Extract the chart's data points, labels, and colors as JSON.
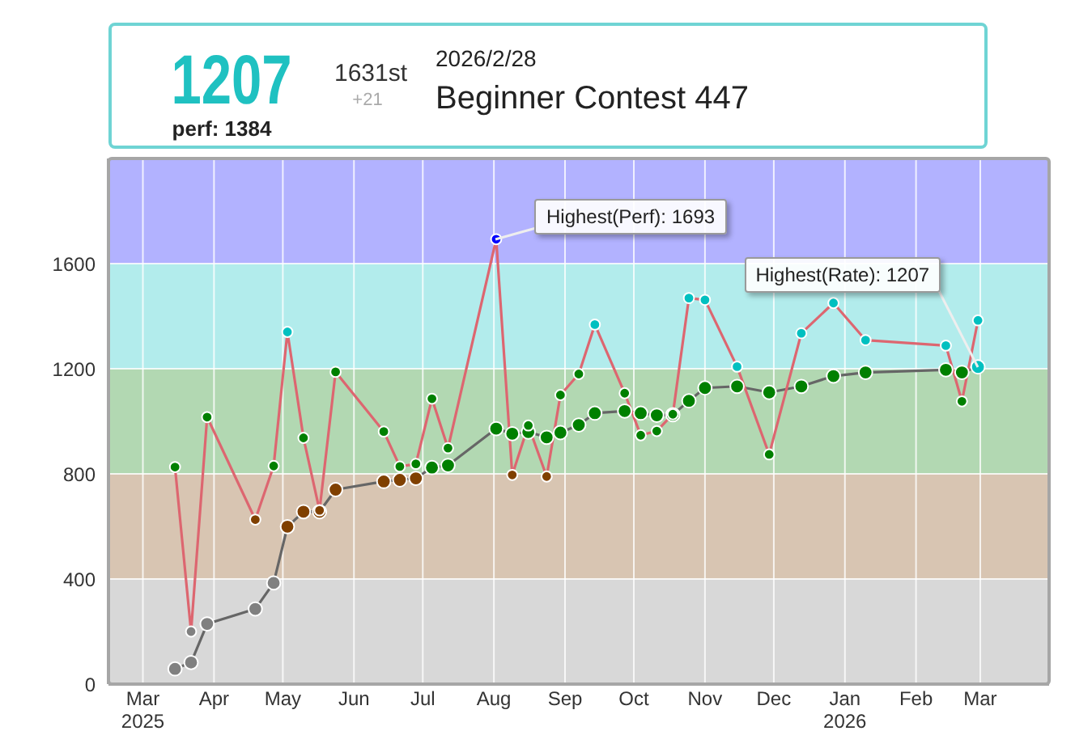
{
  "chart_data": [
    {
      "type": "other",
      "title": "Beginner Contest 447",
      "subtitle": "2026/2/28",
      "annotations": [
        "1207",
        "perf: 1384",
        "1631st",
        "+21"
      ]
    },
    {
      "type": "line",
      "x": [
        "2025-03-15",
        "2025-03-22",
        "2025-03-29",
        "2025-04-19",
        "2025-04-27",
        "2025-05-03",
        "2025-05-10",
        "2025-05-17",
        "2025-05-24",
        "2025-06-14",
        "2025-06-21",
        "2025-06-28",
        "2025-07-05",
        "2025-07-12",
        "2025-08-02",
        "2025-08-09",
        "2025-08-16",
        "2025-08-24",
        "2025-08-30",
        "2025-09-07",
        "2025-09-14",
        "2025-09-27",
        "2025-10-04",
        "2025-10-11",
        "2025-10-18",
        "2025-10-25",
        "2025-11-01",
        "2025-11-15",
        "2025-11-29",
        "2025-12-13",
        "2025-12-27",
        "2026-01-10",
        "2026-02-14",
        "2026-02-21",
        "2026-02-28"
      ],
      "series": [
        {
          "color": "#666666",
          "values": [
            58,
            82,
            229,
            286,
            385,
            599,
            656,
            656,
            740,
            771,
            777,
            783,
            824,
            832,
            972,
            953,
            959,
            939,
            957,
            986,
            1031,
            1039,
            1031,
            1023,
            1025,
            1078,
            1127,
            1133,
            1110,
            1133,
            1172,
            1186,
            1196,
            1186,
            1207
          ],
          "colors": [
            "#808080",
            "#808080",
            "#808080",
            "#808080",
            "#808080",
            "#804000",
            "#804000",
            "#804000",
            "#804000",
            "#804000",
            "#804000",
            "#804000",
            "#008000",
            "#008000",
            "#008000",
            "#008000",
            "#008000",
            "#008000",
            "#008000",
            "#008000",
            "#008000",
            "#008000",
            "#008000",
            "#008000",
            "#008000",
            "#008000",
            "#008000",
            "#008000",
            "#008000",
            "#008000",
            "#008000",
            "#008000",
            "#008000",
            "#008000",
            "#00c0c0"
          ]
        },
        {
          "color": "#dd6670",
          "values": [
            826,
            200,
            1016,
            626,
            830,
            1340,
            937,
            661,
            1188,
            961,
            828,
            838,
            1086,
            898,
            1693,
            796,
            984,
            790,
            1100,
            1180,
            1368,
            1107,
            947,
            963,
            1027,
            1469,
            1462,
            1208,
            874,
            1335,
            1450,
            1309,
            1288,
            1076,
            1384
          ],
          "colors": [
            "#008000",
            "#808080",
            "#008000",
            "#804000",
            "#008000",
            "#00c0c0",
            "#008000",
            "#804000",
            "#008000",
            "#008000",
            "#008000",
            "#008000",
            "#008000",
            "#008000",
            "#0000ff",
            "#804000",
            "#008000",
            "#804000",
            "#008000",
            "#008000",
            "#00c0c0",
            "#008000",
            "#008000",
            "#008000",
            "#008000",
            "#00c0c0",
            "#00c0c0",
            "#00c0c0",
            "#008000",
            "#00c0c0",
            "#00c0c0",
            "#00c0c0",
            "#00c0c0",
            "#008000",
            "#00c0c0"
          ]
        }
      ],
      "xlim": [
        "2025-02-14",
        "2026-03-31"
      ],
      "xticks": [
        {
          "value": "2025-03-01",
          "label": "Mar 2025"
        },
        {
          "value": "2025-04-01",
          "label": "Apr"
        },
        {
          "value": "2025-05-01",
          "label": "May"
        },
        {
          "value": "2025-06-01",
          "label": "Jun"
        },
        {
          "value": "2025-07-01",
          "label": "Jul"
        },
        {
          "value": "2025-08-01",
          "label": "Aug"
        },
        {
          "value": "2025-09-01",
          "label": "Sep"
        },
        {
          "value": "2025-10-01",
          "label": "Oct"
        },
        {
          "value": "2025-11-01",
          "label": "Nov"
        },
        {
          "value": "2025-12-01",
          "label": "Dec"
        },
        {
          "value": "2026-01-01",
          "label": "Jan 2026"
        },
        {
          "value": "2026-02-01",
          "label": "Feb"
        },
        {
          "value": "2026-03-01",
          "label": "Mar"
        }
      ],
      "ylim": [
        0,
        2000
      ],
      "yticks": [
        0,
        400,
        800,
        1200,
        1600
      ],
      "grid": true,
      "marker": "circle",
      "bands": [
        {
          "axis": "y",
          "from": 0,
          "to": 400,
          "color": "#d8d8d8"
        },
        {
          "axis": "y",
          "from": 400,
          "to": 800,
          "color": "#d8c5b2"
        },
        {
          "axis": "y",
          "from": 800,
          "to": 1200,
          "color": "#b2d8b2"
        },
        {
          "axis": "y",
          "from": 1200,
          "to": 1600,
          "color": "#b2ecec"
        },
        {
          "axis": "y",
          "from": 1600,
          "to": 2000,
          "color": "#b2b2ff"
        }
      ],
      "annotations": [
        {
          "text": "Highest(Perf): 1693",
          "x": "2025-08-02",
          "y": 1693
        },
        {
          "text": "Highest(Rate): 1207",
          "x": "2026-02-28",
          "y": 1207
        }
      ]
    }
  ]
}
